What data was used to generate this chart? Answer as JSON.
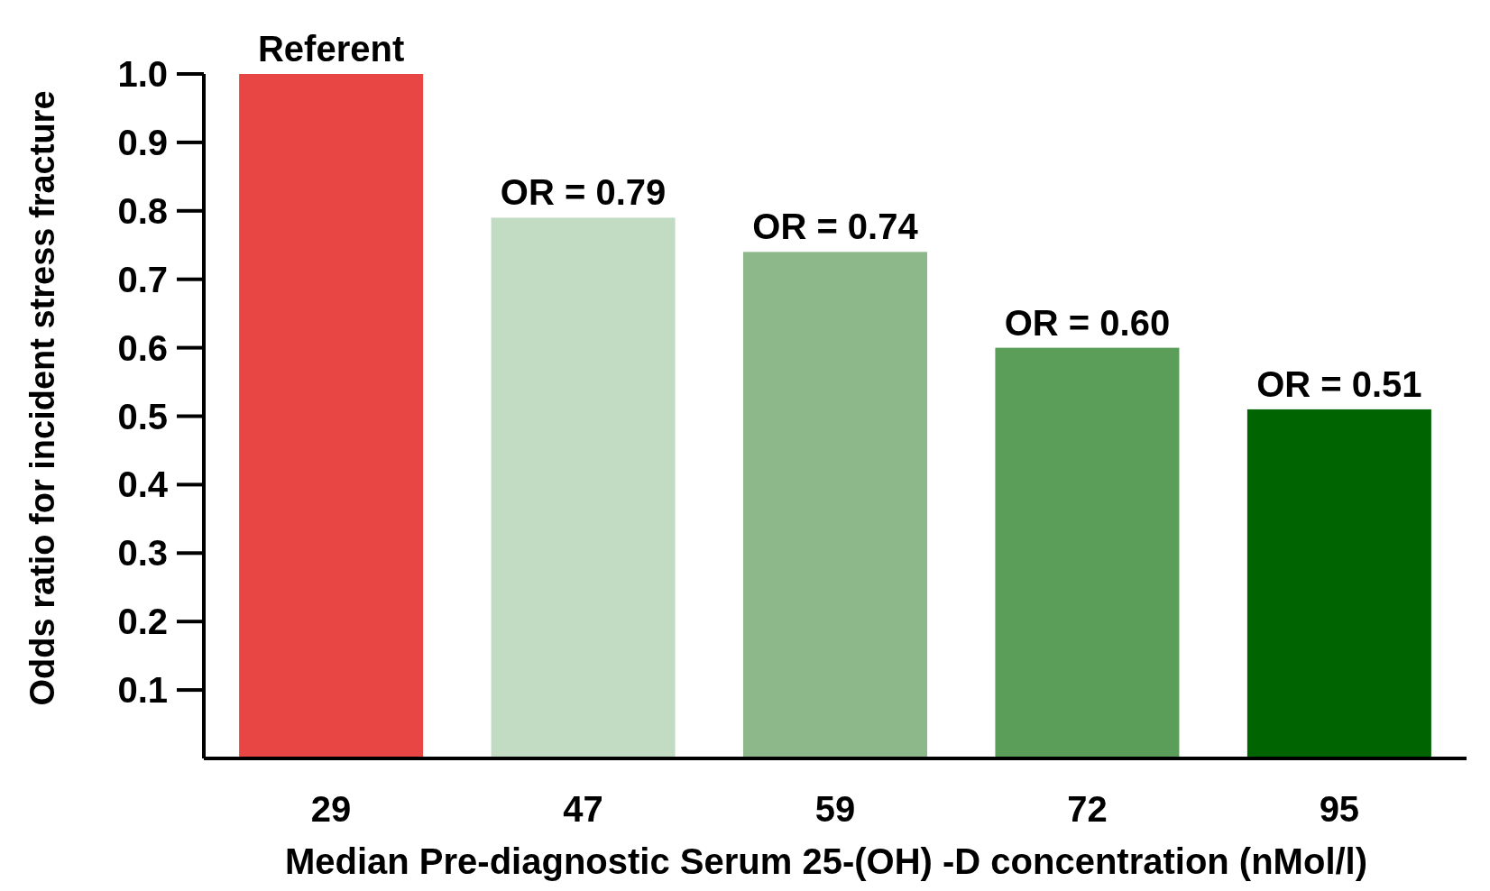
{
  "chart_data": {
    "type": "bar",
    "xlabel": "Median Pre-diagnostic Serum 25-(OH) -D concentration (nMol/l)",
    "ylabel": "Odds ratio for incident stress fracture",
    "categories": [
      "29",
      "47",
      "59",
      "72",
      "95"
    ],
    "values": [
      1.0,
      0.79,
      0.74,
      0.6,
      0.51
    ],
    "colors": [
      "#e84545",
      "#c2dbc3",
      "#8db98a",
      "#5a9e5a",
      "#006400"
    ],
    "value_labels": [
      "Referent",
      "OR = 0.79",
      "OR = 0.74",
      "OR = 0.60",
      "OR = 0.51"
    ],
    "ylim": [
      0,
      1.0
    ],
    "yticks": [
      {
        "value": 0.1,
        "label": "0.1"
      },
      {
        "value": 0.2,
        "label": "0.2"
      },
      {
        "value": 0.3,
        "label": "0.3"
      },
      {
        "value": 0.4,
        "label": "0.4"
      },
      {
        "value": 0.5,
        "label": "0.5"
      },
      {
        "value": 0.6,
        "label": "0.6"
      },
      {
        "value": 0.7,
        "label": "0.7"
      },
      {
        "value": 0.8,
        "label": "0.8"
      },
      {
        "value": 0.9,
        "label": "0.9"
      },
      {
        "value": 1.0,
        "label": "1.0"
      }
    ],
    "grid": false
  }
}
